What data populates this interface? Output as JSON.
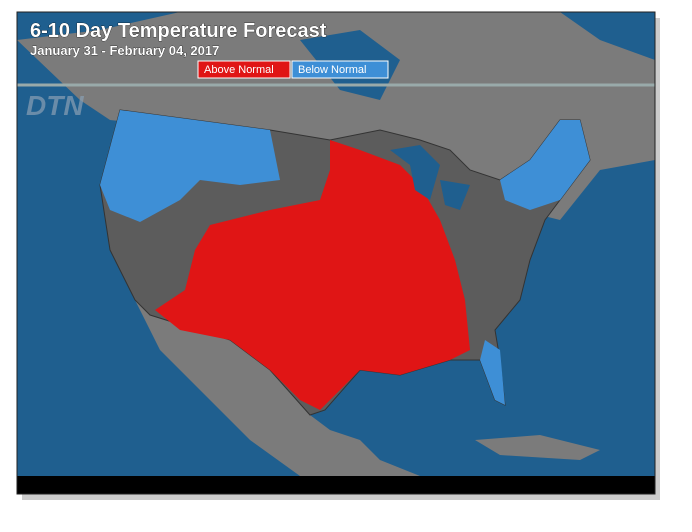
{
  "header": {
    "title": "6-10 Day Temperature Forecast",
    "subtitle": "January 31 - February 04, 2017"
  },
  "legend": {
    "items": [
      {
        "label": "Above Normal",
        "color": "#e01515"
      },
      {
        "label": "Below Normal",
        "color": "#3e8fd6"
      }
    ]
  },
  "logo": "DTN"
}
